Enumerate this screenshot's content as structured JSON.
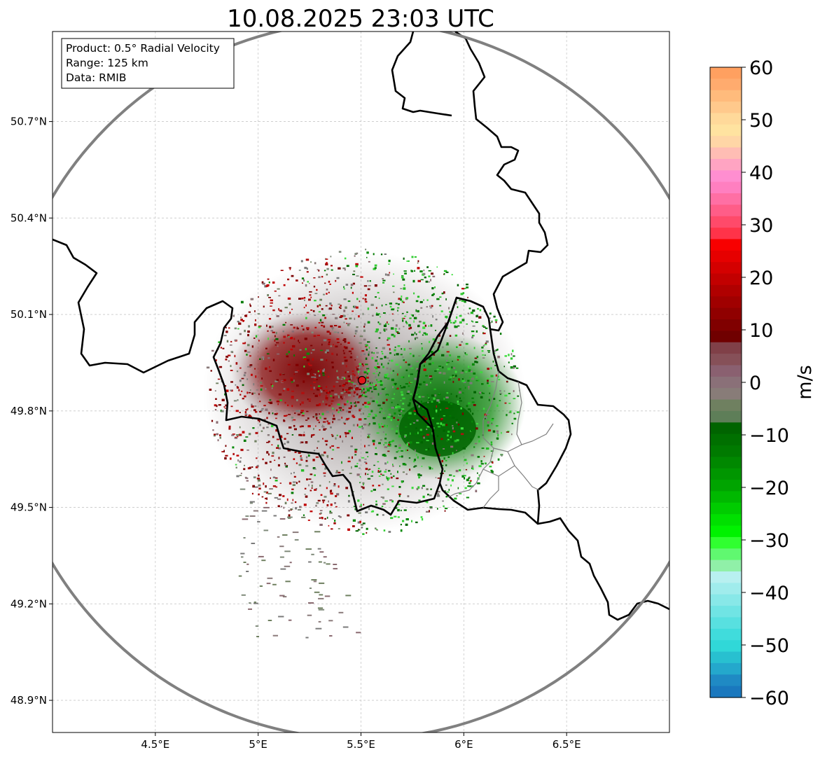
{
  "title": "10.08.2025 23:03 UTC",
  "info_box": {
    "product": "Product: 0.5° Radial Velocity",
    "range": "Range: 125 km",
    "data": "Data: RMIB"
  },
  "map": {
    "lon_range": [
      4.0,
      7.0
    ],
    "lat_range": [
      48.8,
      50.98
    ],
    "x_ticks": [
      {
        "value": 4.5,
        "label": "4.5°E"
      },
      {
        "value": 5.0,
        "label": "5°E"
      },
      {
        "value": 5.5,
        "label": "5.5°E"
      },
      {
        "value": 6.0,
        "label": "6°E"
      },
      {
        "value": 6.5,
        "label": "6.5°E"
      }
    ],
    "y_ticks": [
      {
        "value": 48.9,
        "label": "48.9°N"
      },
      {
        "value": 49.2,
        "label": "49.2°N"
      },
      {
        "value": 49.5,
        "label": "49.5°N"
      },
      {
        "value": 49.8,
        "label": "49.8°N"
      },
      {
        "value": 50.1,
        "label": "50.1°N"
      },
      {
        "value": 50.4,
        "label": "50.4°N"
      },
      {
        "value": 50.7,
        "label": "50.7°N"
      }
    ],
    "radar_site": {
      "lon": 5.505,
      "lat": 49.915,
      "color": "#e3161b"
    },
    "range_ring_color": "#808080",
    "border_color": "#000000",
    "admin_border_color": "#808080"
  },
  "colorbar": {
    "min": -60,
    "max": 60,
    "label": "m/s",
    "ticks": [
      {
        "value": 60,
        "label": "60"
      },
      {
        "value": 50,
        "label": "50"
      },
      {
        "value": 40,
        "label": "40"
      },
      {
        "value": 30,
        "label": "30"
      },
      {
        "value": 20,
        "label": "20"
      },
      {
        "value": 10,
        "label": "10"
      },
      {
        "value": 0,
        "label": "0"
      },
      {
        "value": -10,
        "label": "−10"
      },
      {
        "value": -20,
        "label": "−20"
      },
      {
        "value": -30,
        "label": "−30"
      },
      {
        "value": -40,
        "label": "−40"
      },
      {
        "value": -50,
        "label": "−50"
      },
      {
        "value": -60,
        "label": "−60"
      }
    ],
    "colors_top_to_bottom": [
      "#ffa060",
      "#ffab6e",
      "#ffbb7c",
      "#ffc98c",
      "#ffd99a",
      "#ffe3a0",
      "#ffd6a6",
      "#ffbdb4",
      "#ffa4c2",
      "#ff8ed0",
      "#ff7fc0",
      "#ff6fa4",
      "#ff5d88",
      "#ff4a6a",
      "#ff3349",
      "#f80000",
      "#e60000",
      "#d40000",
      "#c20000",
      "#b00000",
      "#a00000",
      "#900000",
      "#800000",
      "#700000",
      "#804048",
      "#865058",
      "#8a6070",
      "#8a7078",
      "#887c78",
      "#6f8060",
      "#5e7e58",
      "#006400",
      "#007000",
      "#007a00",
      "#008800",
      "#009600",
      "#00a400",
      "#00b800",
      "#00cc00",
      "#00e000",
      "#00f200",
      "#30ff30",
      "#60f870",
      "#90f0a8",
      "#b8f0f0",
      "#a0ecec",
      "#88e8e8",
      "#70e4e4",
      "#58e0e0",
      "#40dcdc",
      "#30d8d8",
      "#28c0d0",
      "#24a8cc",
      "#1f8ac4",
      "#1a78be"
    ]
  }
}
